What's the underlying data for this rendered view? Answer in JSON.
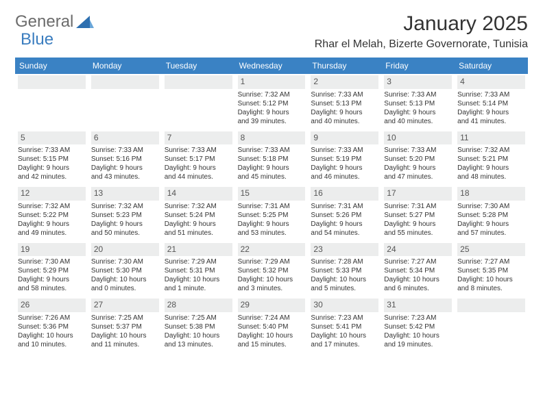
{
  "branding": {
    "text1": "General",
    "text2": "Blue"
  },
  "title": "January 2025",
  "location": "Rhar el Melah, Bizerte Governorate, Tunisia",
  "weekdays": [
    "Sunday",
    "Monday",
    "Tuesday",
    "Wednesday",
    "Thursday",
    "Friday",
    "Saturday"
  ],
  "colors": {
    "header_bar": "#3a82c4",
    "daynum_bg": "#eceded",
    "text": "#333333",
    "logo_gray": "#6b6b6b",
    "logo_blue": "#3a7dbf"
  },
  "weeks": [
    [
      {
        "empty": true
      },
      {
        "empty": true
      },
      {
        "empty": true
      },
      {
        "day": "1",
        "sunrise": "Sunrise: 7:32 AM",
        "sunset": "Sunset: 5:12 PM",
        "dl1": "Daylight: 9 hours",
        "dl2": "and 39 minutes."
      },
      {
        "day": "2",
        "sunrise": "Sunrise: 7:33 AM",
        "sunset": "Sunset: 5:13 PM",
        "dl1": "Daylight: 9 hours",
        "dl2": "and 40 minutes."
      },
      {
        "day": "3",
        "sunrise": "Sunrise: 7:33 AM",
        "sunset": "Sunset: 5:13 PM",
        "dl1": "Daylight: 9 hours",
        "dl2": "and 40 minutes."
      },
      {
        "day": "4",
        "sunrise": "Sunrise: 7:33 AM",
        "sunset": "Sunset: 5:14 PM",
        "dl1": "Daylight: 9 hours",
        "dl2": "and 41 minutes."
      }
    ],
    [
      {
        "day": "5",
        "sunrise": "Sunrise: 7:33 AM",
        "sunset": "Sunset: 5:15 PM",
        "dl1": "Daylight: 9 hours",
        "dl2": "and 42 minutes."
      },
      {
        "day": "6",
        "sunrise": "Sunrise: 7:33 AM",
        "sunset": "Sunset: 5:16 PM",
        "dl1": "Daylight: 9 hours",
        "dl2": "and 43 minutes."
      },
      {
        "day": "7",
        "sunrise": "Sunrise: 7:33 AM",
        "sunset": "Sunset: 5:17 PM",
        "dl1": "Daylight: 9 hours",
        "dl2": "and 44 minutes."
      },
      {
        "day": "8",
        "sunrise": "Sunrise: 7:33 AM",
        "sunset": "Sunset: 5:18 PM",
        "dl1": "Daylight: 9 hours",
        "dl2": "and 45 minutes."
      },
      {
        "day": "9",
        "sunrise": "Sunrise: 7:33 AM",
        "sunset": "Sunset: 5:19 PM",
        "dl1": "Daylight: 9 hours",
        "dl2": "and 46 minutes."
      },
      {
        "day": "10",
        "sunrise": "Sunrise: 7:33 AM",
        "sunset": "Sunset: 5:20 PM",
        "dl1": "Daylight: 9 hours",
        "dl2": "and 47 minutes."
      },
      {
        "day": "11",
        "sunrise": "Sunrise: 7:32 AM",
        "sunset": "Sunset: 5:21 PM",
        "dl1": "Daylight: 9 hours",
        "dl2": "and 48 minutes."
      }
    ],
    [
      {
        "day": "12",
        "sunrise": "Sunrise: 7:32 AM",
        "sunset": "Sunset: 5:22 PM",
        "dl1": "Daylight: 9 hours",
        "dl2": "and 49 minutes."
      },
      {
        "day": "13",
        "sunrise": "Sunrise: 7:32 AM",
        "sunset": "Sunset: 5:23 PM",
        "dl1": "Daylight: 9 hours",
        "dl2": "and 50 minutes."
      },
      {
        "day": "14",
        "sunrise": "Sunrise: 7:32 AM",
        "sunset": "Sunset: 5:24 PM",
        "dl1": "Daylight: 9 hours",
        "dl2": "and 51 minutes."
      },
      {
        "day": "15",
        "sunrise": "Sunrise: 7:31 AM",
        "sunset": "Sunset: 5:25 PM",
        "dl1": "Daylight: 9 hours",
        "dl2": "and 53 minutes."
      },
      {
        "day": "16",
        "sunrise": "Sunrise: 7:31 AM",
        "sunset": "Sunset: 5:26 PM",
        "dl1": "Daylight: 9 hours",
        "dl2": "and 54 minutes."
      },
      {
        "day": "17",
        "sunrise": "Sunrise: 7:31 AM",
        "sunset": "Sunset: 5:27 PM",
        "dl1": "Daylight: 9 hours",
        "dl2": "and 55 minutes."
      },
      {
        "day": "18",
        "sunrise": "Sunrise: 7:30 AM",
        "sunset": "Sunset: 5:28 PM",
        "dl1": "Daylight: 9 hours",
        "dl2": "and 57 minutes."
      }
    ],
    [
      {
        "day": "19",
        "sunrise": "Sunrise: 7:30 AM",
        "sunset": "Sunset: 5:29 PM",
        "dl1": "Daylight: 9 hours",
        "dl2": "and 58 minutes."
      },
      {
        "day": "20",
        "sunrise": "Sunrise: 7:30 AM",
        "sunset": "Sunset: 5:30 PM",
        "dl1": "Daylight: 10 hours",
        "dl2": "and 0 minutes."
      },
      {
        "day": "21",
        "sunrise": "Sunrise: 7:29 AM",
        "sunset": "Sunset: 5:31 PM",
        "dl1": "Daylight: 10 hours",
        "dl2": "and 1 minute."
      },
      {
        "day": "22",
        "sunrise": "Sunrise: 7:29 AM",
        "sunset": "Sunset: 5:32 PM",
        "dl1": "Daylight: 10 hours",
        "dl2": "and 3 minutes."
      },
      {
        "day": "23",
        "sunrise": "Sunrise: 7:28 AM",
        "sunset": "Sunset: 5:33 PM",
        "dl1": "Daylight: 10 hours",
        "dl2": "and 5 minutes."
      },
      {
        "day": "24",
        "sunrise": "Sunrise: 7:27 AM",
        "sunset": "Sunset: 5:34 PM",
        "dl1": "Daylight: 10 hours",
        "dl2": "and 6 minutes."
      },
      {
        "day": "25",
        "sunrise": "Sunrise: 7:27 AM",
        "sunset": "Sunset: 5:35 PM",
        "dl1": "Daylight: 10 hours",
        "dl2": "and 8 minutes."
      }
    ],
    [
      {
        "day": "26",
        "sunrise": "Sunrise: 7:26 AM",
        "sunset": "Sunset: 5:36 PM",
        "dl1": "Daylight: 10 hours",
        "dl2": "and 10 minutes."
      },
      {
        "day": "27",
        "sunrise": "Sunrise: 7:25 AM",
        "sunset": "Sunset: 5:37 PM",
        "dl1": "Daylight: 10 hours",
        "dl2": "and 11 minutes."
      },
      {
        "day": "28",
        "sunrise": "Sunrise: 7:25 AM",
        "sunset": "Sunset: 5:38 PM",
        "dl1": "Daylight: 10 hours",
        "dl2": "and 13 minutes."
      },
      {
        "day": "29",
        "sunrise": "Sunrise: 7:24 AM",
        "sunset": "Sunset: 5:40 PM",
        "dl1": "Daylight: 10 hours",
        "dl2": "and 15 minutes."
      },
      {
        "day": "30",
        "sunrise": "Sunrise: 7:23 AM",
        "sunset": "Sunset: 5:41 PM",
        "dl1": "Daylight: 10 hours",
        "dl2": "and 17 minutes."
      },
      {
        "day": "31",
        "sunrise": "Sunrise: 7:23 AM",
        "sunset": "Sunset: 5:42 PM",
        "dl1": "Daylight: 10 hours",
        "dl2": "and 19 minutes."
      },
      {
        "empty": true
      }
    ]
  ]
}
